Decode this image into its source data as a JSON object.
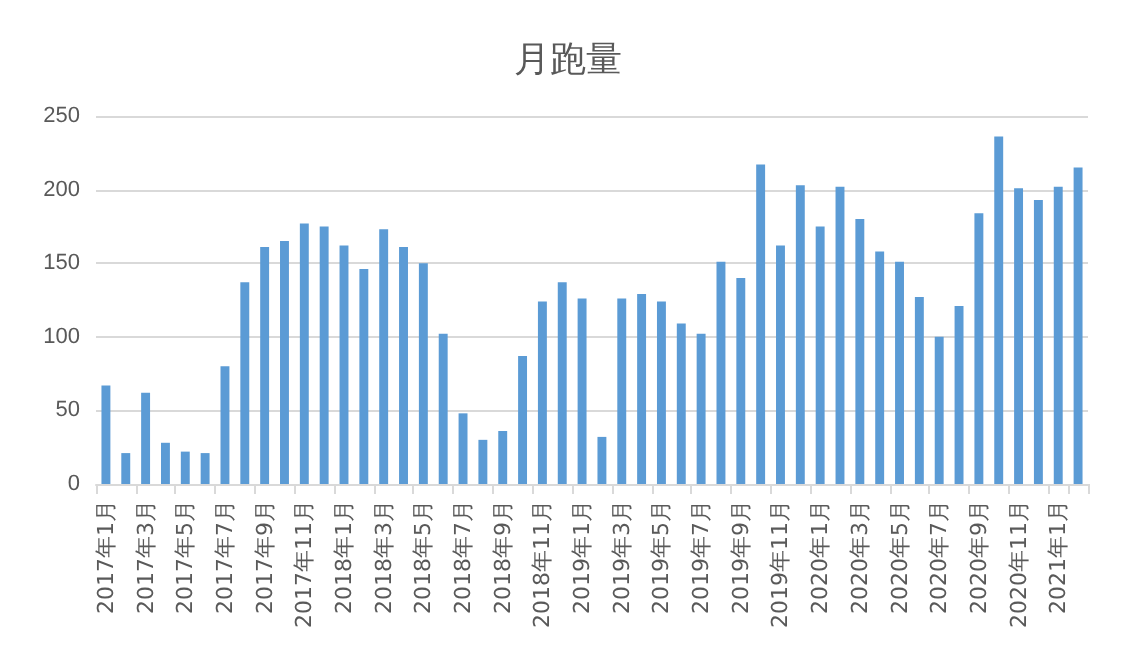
{
  "chart_data": {
    "type": "bar",
    "title": "月跑量",
    "categories": [
      "2017年1月",
      null,
      "2017年3月",
      null,
      "2017年5月",
      null,
      "2017年7月",
      null,
      "2017年9月",
      null,
      "2017年11月",
      null,
      "2018年1月",
      null,
      "2018年3月",
      null,
      "2018年5月",
      null,
      "2018年7月",
      null,
      "2018年9月",
      null,
      "2018年11月",
      null,
      "2019年1月",
      null,
      "2019年3月",
      null,
      "2019年5月",
      null,
      "2019年7月",
      null,
      "2019年9月",
      null,
      "2019年11月",
      null,
      "2020年1月",
      null,
      "2020年3月",
      null,
      "2020年5月",
      null,
      "2020年7月",
      null,
      "2020年9月",
      null,
      "2020年11月",
      null,
      "2021年1月",
      null
    ],
    "values": [
      67,
      21,
      62,
      28,
      22,
      21,
      80,
      137,
      161,
      165,
      177,
      175,
      162,
      146,
      173,
      161,
      150,
      102,
      48,
      30,
      36,
      87,
      124,
      137,
      126,
      32,
      126,
      129,
      124,
      109,
      102,
      151,
      140,
      217,
      162,
      203,
      175,
      202,
      180,
      158,
      151,
      127,
      100,
      121,
      184,
      236,
      201,
      193,
      202,
      215
    ],
    "color": "#5b9bd5",
    "ylim": [
      0,
      250
    ],
    "yticks": [
      0,
      50,
      100,
      150,
      200,
      250
    ],
    "grid": "y"
  }
}
